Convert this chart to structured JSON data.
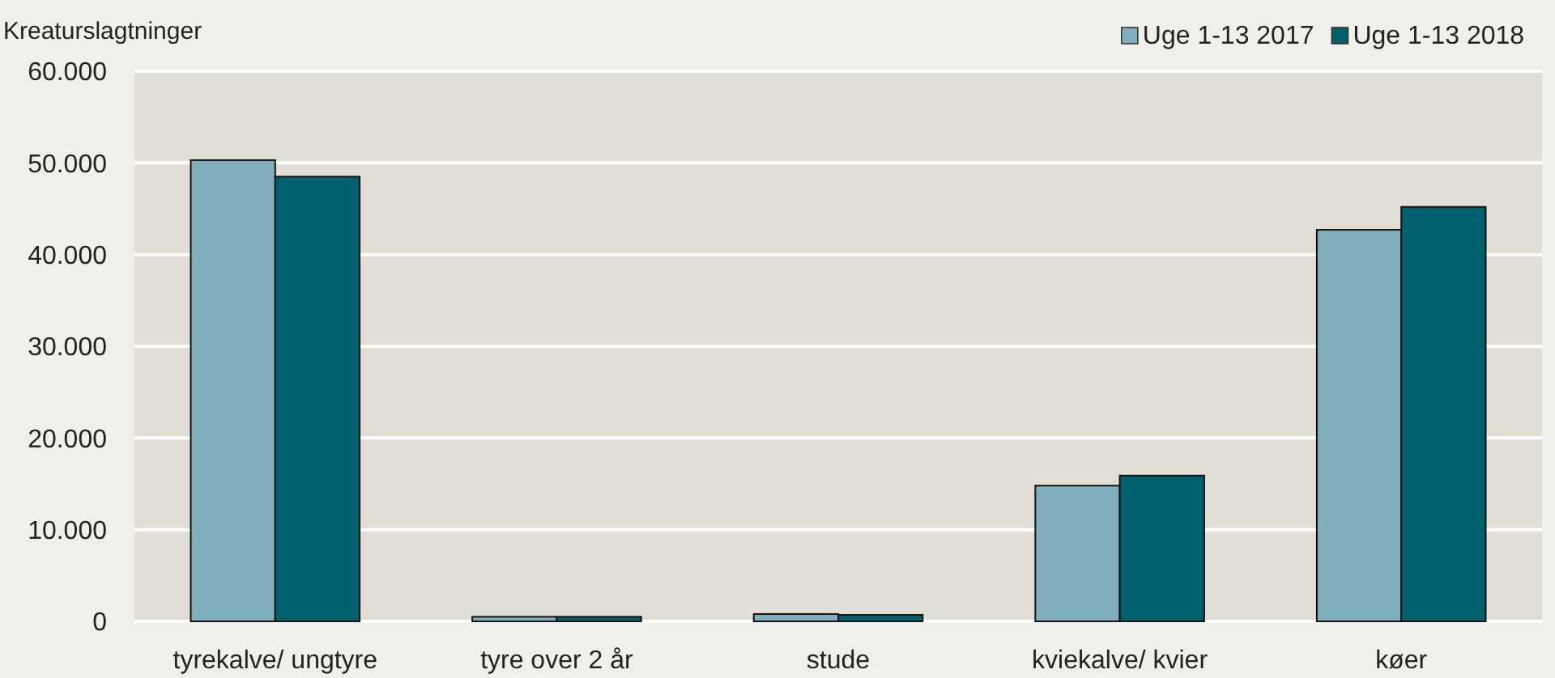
{
  "chart_data": {
    "type": "bar",
    "ylabel": "Kreaturslagtninger",
    "categories": [
      "tyrekalve/ ungtyre",
      "tyre over 2 år",
      "stude",
      "kviekalve/ kvier",
      "køer"
    ],
    "series": [
      {
        "name": "Uge 1-13 2017",
        "color": "#80aebd",
        "values": [
          50300,
          500,
          800,
          14800,
          42700
        ]
      },
      {
        "name": "Uge 1-13 2018",
        "color": "#00606e",
        "values": [
          48500,
          500,
          700,
          15900,
          45200
        ]
      }
    ],
    "ylim": [
      0,
      60000
    ],
    "yticks": [
      {
        "value": 0,
        "label": "0"
      },
      {
        "value": 10000,
        "label": "10.000"
      },
      {
        "value": 20000,
        "label": "20.000"
      },
      {
        "value": 30000,
        "label": "30.000"
      },
      {
        "value": 40000,
        "label": "40.000"
      },
      {
        "value": 50000,
        "label": "50.000"
      },
      {
        "value": 60000,
        "label": "60.000"
      }
    ],
    "grid": "y",
    "legend": "top right"
  }
}
